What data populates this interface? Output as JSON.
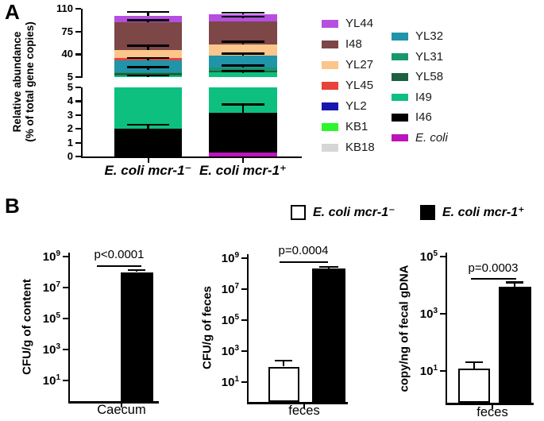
{
  "figure": {
    "panel_a_letter": "A",
    "panel_b_letter": "B"
  },
  "panel_a": {
    "ylabel_line1": "Relative abundance",
    "ylabel_line2": "(% of total gene copies)"
  },
  "panel_b": {
    "legend": [
      {
        "label": "E. coli mcr-1⁻",
        "fill": "#ffffff"
      },
      {
        "label": "E. coli mcr-1⁺",
        "fill": "#000000"
      }
    ]
  },
  "chart_data": [
    {
      "id": "panel-a-community-composition",
      "type": "bar",
      "subtype": "stacked",
      "ylabel": "Relative abundance (% of total gene copies)",
      "axis_break": {
        "upper_range": [
          5,
          110
        ],
        "upper_ticks": [
          110,
          75,
          40,
          5
        ],
        "lower_range": [
          0,
          5
        ],
        "lower_ticks": [
          5,
          4,
          3,
          2,
          1,
          0
        ]
      },
      "categories": [
        "E. coli mcr-1⁻",
        "E. coli mcr-1⁺"
      ],
      "legend": [
        {
          "label": "YL44",
          "color": "#b44fe0"
        },
        {
          "label": "I48",
          "color": "#7d4647"
        },
        {
          "label": "YL27",
          "color": "#fbc58b"
        },
        {
          "label": "YL45",
          "color": "#e8423a"
        },
        {
          "label": "YL2",
          "color": "#1717b0"
        },
        {
          "label": "KB1",
          "color": "#2cf52c"
        },
        {
          "label": "KB18",
          "color": "#d6d6d6"
        },
        {
          "label": "YL32",
          "color": "#2094a9"
        },
        {
          "label": "YL31",
          "color": "#17986c"
        },
        {
          "label": "YL58",
          "color": "#1c5f42"
        },
        {
          "label": "I49",
          "color": "#0dc07f"
        },
        {
          "label": "I46",
          "color": "#000000"
        },
        {
          "label": "E. coli",
          "color": "#bc14bc",
          "italic": true
        }
      ],
      "bars": [
        {
          "category": "E. coli mcr-1⁻",
          "segments": [
            {
              "taxon": "I46",
              "from": 0,
              "to": 2.0
            },
            {
              "taxon": "I49",
              "from": 2.0,
              "to": 7.5
            },
            {
              "taxon": "YL58",
              "from": 7.5,
              "to": 11
            },
            {
              "taxon": "YL31",
              "from": 11,
              "to": 12.5
            },
            {
              "taxon": "YL32",
              "from": 12.5,
              "to": 31
            },
            {
              "taxon": "YL45",
              "from": 31,
              "to": 34
            },
            {
              "taxon": "YL27",
              "from": 34,
              "to": 47
            },
            {
              "taxon": "I48",
              "from": 47,
              "to": 89.5
            },
            {
              "taxon": "YL44",
              "from": 89.5,
              "to": 99
            }
          ],
          "error_marks": [
            {
              "at": 2.3,
              "stem_to": 2.0
            },
            {
              "at": 7.5,
              "stem_to": 5.5
            },
            {
              "at": 20,
              "stem_to": 16
            },
            {
              "at": 34.5,
              "stem_to": 31
            },
            {
              "at": 53,
              "stem_to": 47
            },
            {
              "at": 92,
              "stem_to": 89
            },
            {
              "at": 105,
              "stem_to": 99
            }
          ]
        },
        {
          "category": "E. coli mcr-1⁺",
          "segments": [
            {
              "taxon": "E. coli",
              "from": 0,
              "to": 0.3
            },
            {
              "taxon": "I46",
              "from": 0.3,
              "to": 3.15
            },
            {
              "taxon": "I49",
              "from": 3.15,
              "to": 12
            },
            {
              "taxon": "YL58",
              "from": 12,
              "to": 14.5
            },
            {
              "taxon": "YL31",
              "from": 14.5,
              "to": 19.5
            },
            {
              "taxon": "YL32",
              "from": 19.5,
              "to": 37.6
            },
            {
              "taxon": "YL27",
              "from": 37.6,
              "to": 55.5
            },
            {
              "taxon": "I48",
              "from": 55.5,
              "to": 90
            },
            {
              "taxon": "YL44",
              "from": 90,
              "to": 101
            }
          ],
          "error_marks": [
            {
              "at": 3.75,
              "stem_to": 3.15
            },
            {
              "at": 14,
              "stem_to": 11
            },
            {
              "at": 23,
              "stem_to": 19.5
            },
            {
              "at": 41,
              "stem_to": 37.6
            },
            {
              "at": 59,
              "stem_to": 55.5
            },
            {
              "at": 98,
              "stem_to": 95
            },
            {
              "at": 104,
              "stem_to": 101
            }
          ]
        }
      ]
    },
    {
      "id": "panel-b-caecum-cfu",
      "type": "bar",
      "log_scale": true,
      "ylabel": "CFU/g of content",
      "xlabel": "Caecum",
      "ytick_exponents": [
        9,
        7,
        5,
        3,
        1
      ],
      "ylim": [
        0.5,
        1000000000
      ],
      "p_label": "p<0.0001",
      "series": [
        {
          "name": "E. coli mcr-1⁻",
          "fill": "#ffffff",
          "value": null
        },
        {
          "name": "E. coli mcr-1⁺",
          "fill": "#000000",
          "value": 100000000,
          "error_top": 135000000
        }
      ]
    },
    {
      "id": "panel-b-feces-cfu",
      "type": "bar",
      "log_scale": true,
      "ylabel": "CFU/g of feces",
      "xlabel": "feces",
      "ytick_exponents": [
        9,
        7,
        5,
        3,
        1
      ],
      "ylim": [
        0.5,
        1000000000
      ],
      "p_label": "p=0.0004",
      "series": [
        {
          "name": "E. coli mcr-1⁻",
          "fill": "#ffffff",
          "value": 100,
          "error_top": 250
        },
        {
          "name": "E. coli mcr-1⁺",
          "fill": "#000000",
          "value": 210000000,
          "error_top": 280000000
        }
      ]
    },
    {
      "id": "panel-b-feces-gdna-copies",
      "type": "bar",
      "log_scale": true,
      "ylabel": "copy/ng of fecal gDNA",
      "xlabel": "feces",
      "ytick_exponents": [
        5,
        3,
        1
      ],
      "ylim": [
        0.7,
        100000
      ],
      "p_label": "p=0.0003",
      "series": [
        {
          "name": "E. coli mcr-1⁻",
          "fill": "#ffffff",
          "value": 12,
          "error_top": 20
        },
        {
          "name": "E. coli mcr-1⁺",
          "fill": "#000000",
          "value": 9000,
          "error_top": 12500
        }
      ]
    }
  ]
}
